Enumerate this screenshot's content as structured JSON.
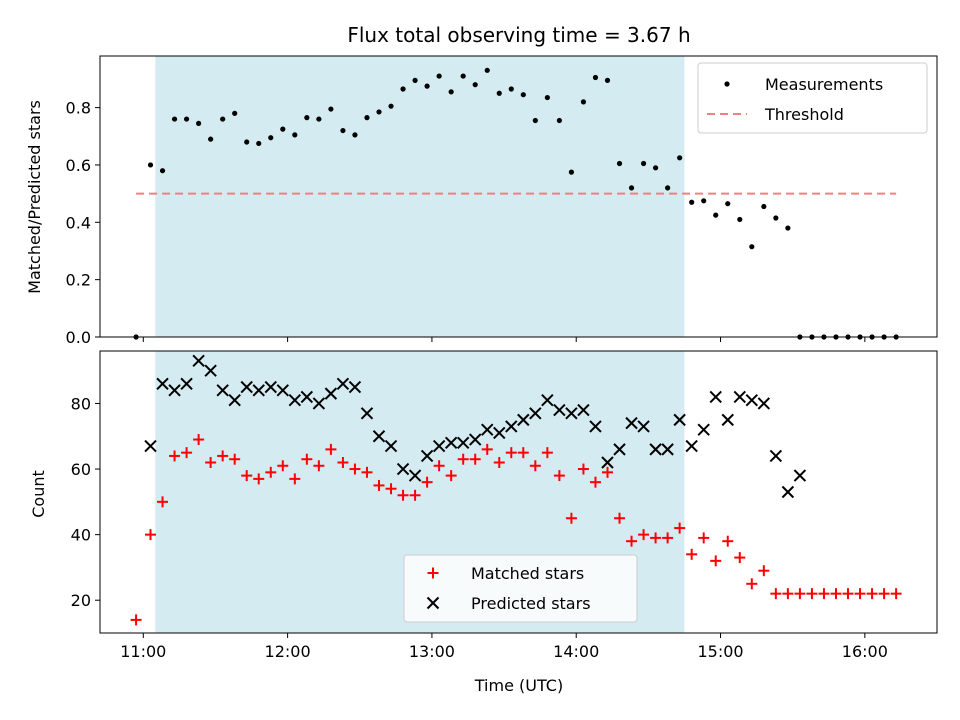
{
  "chart_data": [
    {
      "type": "scatter",
      "title": "Flux total observing time = 3.67 h",
      "xlabel": "",
      "ylabel": "Matched/Predicted stars",
      "ylim": [
        0,
        0.98
      ],
      "yticks": [
        "0.0",
        "0.2",
        "0.4",
        "0.6",
        "0.8"
      ],
      "shaded_region": {
        "x_start": "11:05",
        "x_end": "14:45",
        "color": "#d4ebf1"
      },
      "legend_position": "top-right",
      "series": [
        {
          "name": "Measurements",
          "marker": "dot",
          "color": "#000000",
          "points": [
            [
              "10:57",
              0.0
            ],
            [
              "11:03",
              0.6
            ],
            [
              "11:08",
              0.58
            ],
            [
              "11:13",
              0.76
            ],
            [
              "11:18",
              0.76
            ],
            [
              "11:23",
              0.745
            ],
            [
              "11:28",
              0.69
            ],
            [
              "11:33",
              0.76
            ],
            [
              "11:38",
              0.78
            ],
            [
              "11:43",
              0.68
            ],
            [
              "11:48",
              0.675
            ],
            [
              "11:53",
              0.695
            ],
            [
              "11:58",
              0.725
            ],
            [
              "12:03",
              0.705
            ],
            [
              "12:08",
              0.765
            ],
            [
              "12:13",
              0.76
            ],
            [
              "12:18",
              0.795
            ],
            [
              "12:23",
              0.72
            ],
            [
              "12:28",
              0.705
            ],
            [
              "12:33",
              0.765
            ],
            [
              "12:38",
              0.785
            ],
            [
              "12:43",
              0.805
            ],
            [
              "12:48",
              0.865
            ],
            [
              "12:53",
              0.895
            ],
            [
              "12:58",
              0.875
            ],
            [
              "13:03",
              0.91
            ],
            [
              "13:08",
              0.855
            ],
            [
              "13:13",
              0.91
            ],
            [
              "13:18",
              0.88
            ],
            [
              "13:23",
              0.93
            ],
            [
              "13:28",
              0.85
            ],
            [
              "13:33",
              0.865
            ],
            [
              "13:38",
              0.845
            ],
            [
              "13:43",
              0.755
            ],
            [
              "13:48",
              0.835
            ],
            [
              "13:53",
              0.755
            ],
            [
              "13:58",
              0.575
            ],
            [
              "14:03",
              0.82
            ],
            [
              "14:08",
              0.905
            ],
            [
              "14:13",
              0.895
            ],
            [
              "14:18",
              0.605
            ],
            [
              "14:23",
              0.52
            ],
            [
              "14:28",
              0.605
            ],
            [
              "14:33",
              0.59
            ],
            [
              "14:38",
              0.52
            ],
            [
              "14:43",
              0.625
            ],
            [
              "14:48",
              0.47
            ],
            [
              "14:53",
              0.475
            ],
            [
              "14:58",
              0.425
            ],
            [
              "15:03",
              0.465
            ],
            [
              "15:08",
              0.41
            ],
            [
              "15:13",
              0.315
            ],
            [
              "15:18",
              0.455
            ],
            [
              "15:23",
              0.415
            ],
            [
              "15:28",
              0.38
            ],
            [
              "15:33",
              0.0
            ],
            [
              "15:38",
              0.0
            ],
            [
              "15:43",
              0.0
            ],
            [
              "15:48",
              0.0
            ],
            [
              "15:53",
              0.0
            ],
            [
              "15:58",
              0.0
            ],
            [
              "16:03",
              0.0
            ],
            [
              "16:08",
              0.0
            ],
            [
              "16:13",
              0.0
            ]
          ]
        },
        {
          "name": "Threshold",
          "line": "dashed",
          "color": "#f08080",
          "points": [
            [
              "10:57",
              0.5
            ],
            [
              "16:13",
              0.5
            ]
          ]
        }
      ]
    },
    {
      "type": "scatter",
      "title": "",
      "xlabel": "Time (UTC)",
      "ylabel": "Count",
      "ylim": [
        10,
        96
      ],
      "yticks": [
        "20",
        "40",
        "60",
        "80"
      ],
      "xticks": [
        "11:00",
        "12:00",
        "13:00",
        "14:00",
        "15:00",
        "16:00"
      ],
      "shaded_region": {
        "x_start": "11:05",
        "x_end": "14:45",
        "color": "#d4ebf1"
      },
      "legend_position": "lower-center",
      "series": [
        {
          "name": "Matched stars",
          "marker": "plus",
          "color": "#ff0000",
          "points": [
            [
              "10:57",
              14
            ],
            [
              "11:03",
              40
            ],
            [
              "11:08",
              50
            ],
            [
              "11:13",
              64
            ],
            [
              "11:18",
              65
            ],
            [
              "11:23",
              69
            ],
            [
              "11:28",
              62
            ],
            [
              "11:33",
              64
            ],
            [
              "11:38",
              63
            ],
            [
              "11:43",
              58
            ],
            [
              "11:48",
              57
            ],
            [
              "11:53",
              59
            ],
            [
              "11:58",
              61
            ],
            [
              "12:03",
              57
            ],
            [
              "12:08",
              63
            ],
            [
              "12:13",
              61
            ],
            [
              "12:18",
              66
            ],
            [
              "12:23",
              62
            ],
            [
              "12:28",
              60
            ],
            [
              "12:33",
              59
            ],
            [
              "12:38",
              55
            ],
            [
              "12:43",
              54
            ],
            [
              "12:48",
              52
            ],
            [
              "12:53",
              52
            ],
            [
              "12:58",
              56
            ],
            [
              "13:03",
              61
            ],
            [
              "13:08",
              58
            ],
            [
              "13:13",
              63
            ],
            [
              "13:18",
              63
            ],
            [
              "13:23",
              66
            ],
            [
              "13:28",
              62
            ],
            [
              "13:33",
              65
            ],
            [
              "13:38",
              65
            ],
            [
              "13:43",
              61
            ],
            [
              "13:48",
              65
            ],
            [
              "13:53",
              58
            ],
            [
              "13:58",
              45
            ],
            [
              "14:03",
              60
            ],
            [
              "14:08",
              56
            ],
            [
              "14:13",
              59
            ],
            [
              "14:18",
              45
            ],
            [
              "14:23",
              38
            ],
            [
              "14:28",
              40
            ],
            [
              "14:33",
              39
            ],
            [
              "14:38",
              39
            ],
            [
              "14:43",
              42
            ],
            [
              "14:48",
              34
            ],
            [
              "14:53",
              39
            ],
            [
              "14:58",
              32
            ],
            [
              "15:03",
              38
            ],
            [
              "15:08",
              33
            ],
            [
              "15:13",
              25
            ],
            [
              "15:18",
              29
            ],
            [
              "15:23",
              22
            ],
            [
              "15:28",
              22
            ],
            [
              "15:33",
              22
            ],
            [
              "15:38",
              22
            ],
            [
              "15:43",
              22
            ],
            [
              "15:48",
              22
            ],
            [
              "15:53",
              22
            ],
            [
              "15:58",
              22
            ],
            [
              "16:03",
              22
            ],
            [
              "16:08",
              22
            ],
            [
              "16:13",
              22
            ]
          ]
        },
        {
          "name": "Predicted stars",
          "marker": "x",
          "color": "#000000",
          "points": [
            [
              "11:03",
              67
            ],
            [
              "11:08",
              86
            ],
            [
              "11:13",
              84
            ],
            [
              "11:18",
              86
            ],
            [
              "11:23",
              93
            ],
            [
              "11:28",
              90
            ],
            [
              "11:33",
              84
            ],
            [
              "11:38",
              81
            ],
            [
              "11:43",
              85
            ],
            [
              "11:48",
              84
            ],
            [
              "11:53",
              85
            ],
            [
              "11:58",
              84
            ],
            [
              "12:03",
              81
            ],
            [
              "12:08",
              82
            ],
            [
              "12:13",
              80
            ],
            [
              "12:18",
              83
            ],
            [
              "12:23",
              86
            ],
            [
              "12:28",
              85
            ],
            [
              "12:33",
              77
            ],
            [
              "12:38",
              70
            ],
            [
              "12:43",
              67
            ],
            [
              "12:48",
              60
            ],
            [
              "12:53",
              58
            ],
            [
              "12:58",
              64
            ],
            [
              "13:03",
              67
            ],
            [
              "13:08",
              68
            ],
            [
              "13:13",
              68
            ],
            [
              "13:18",
              69
            ],
            [
              "13:23",
              72
            ],
            [
              "13:28",
              71
            ],
            [
              "13:33",
              73
            ],
            [
              "13:38",
              75
            ],
            [
              "13:43",
              77
            ],
            [
              "13:48",
              81
            ],
            [
              "13:53",
              78
            ],
            [
              "13:58",
              77
            ],
            [
              "14:03",
              78
            ],
            [
              "14:08",
              73
            ],
            [
              "14:13",
              62
            ],
            [
              "14:18",
              66
            ],
            [
              "14:23",
              74
            ],
            [
              "14:28",
              73
            ],
            [
              "14:33",
              66
            ],
            [
              "14:38",
              66
            ],
            [
              "14:43",
              75
            ],
            [
              "14:48",
              67
            ],
            [
              "14:53",
              72
            ],
            [
              "14:58",
              82
            ],
            [
              "15:03",
              75
            ],
            [
              "15:08",
              82
            ],
            [
              "15:13",
              81
            ],
            [
              "15:18",
              80
            ],
            [
              "15:23",
              64
            ],
            [
              "15:28",
              53
            ],
            [
              "15:33",
              58
            ]
          ]
        }
      ]
    }
  ]
}
